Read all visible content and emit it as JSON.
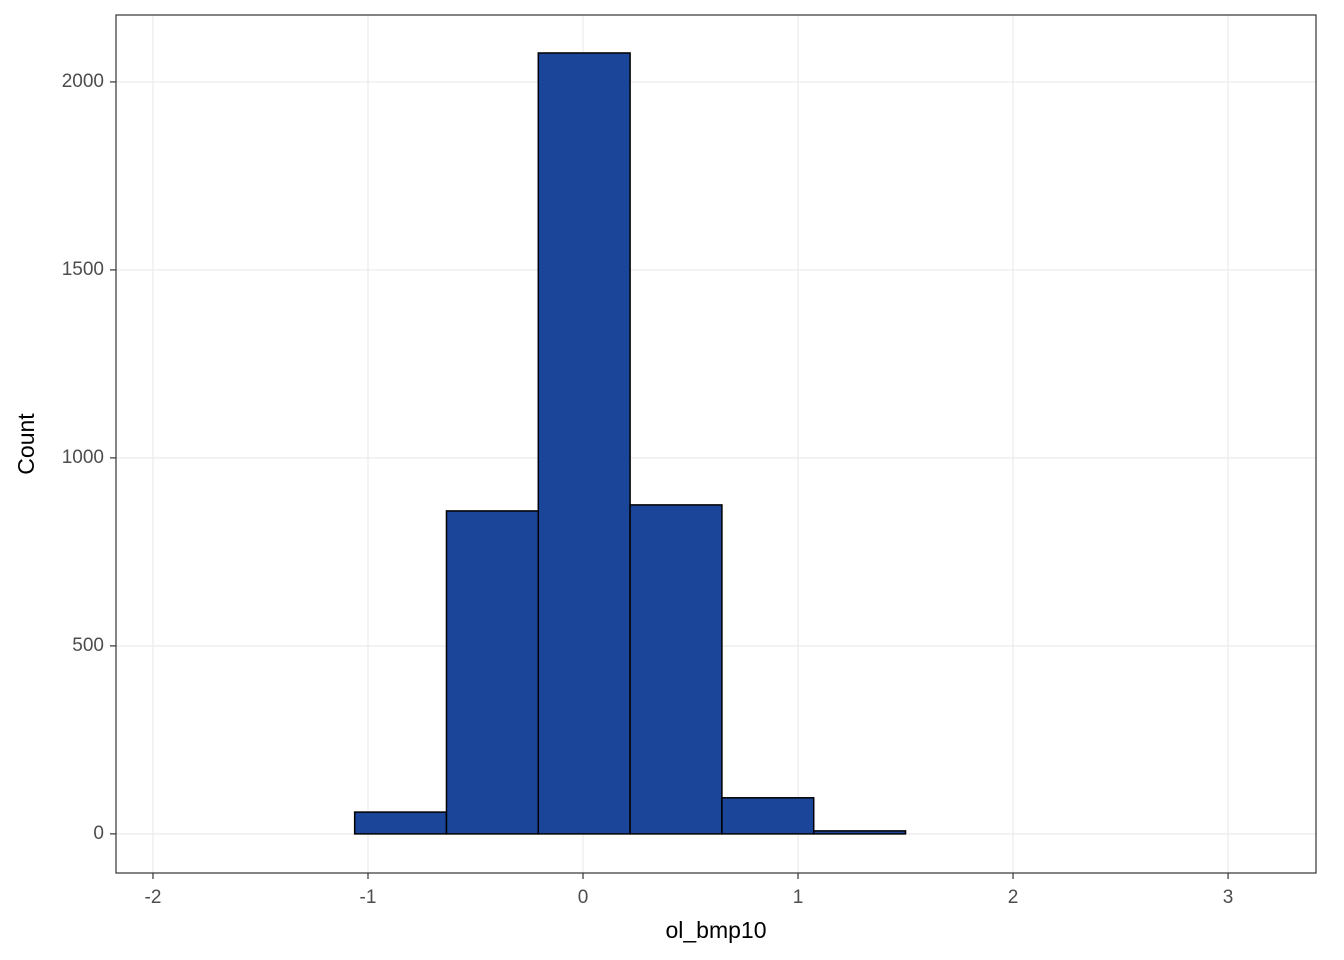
{
  "chart_data": {
    "type": "histogram",
    "x_label": "ol_bmp10",
    "y_label": "Count",
    "bins": [
      -1.916,
      -1.489,
      -1.062,
      -0.635,
      -0.208,
      0.219,
      0.646,
      1.073,
      1.5,
      1.927,
      2.354,
      2.781,
      3.208
    ],
    "values": [
      0,
      0,
      58,
      859,
      2077,
      875,
      96,
      8,
      0,
      0,
      0,
      0
    ],
    "color": "#1a4599",
    "edge_color": "#000000",
    "xlim": [
      -2.172,
      3.409
    ],
    "xticks": [
      -2,
      -1,
      0,
      1,
      2,
      3
    ],
    "ylim": [
      -104,
      2178
    ],
    "yticks": [
      0,
      500,
      1000,
      1500,
      2000
    ],
    "grid": true
  }
}
